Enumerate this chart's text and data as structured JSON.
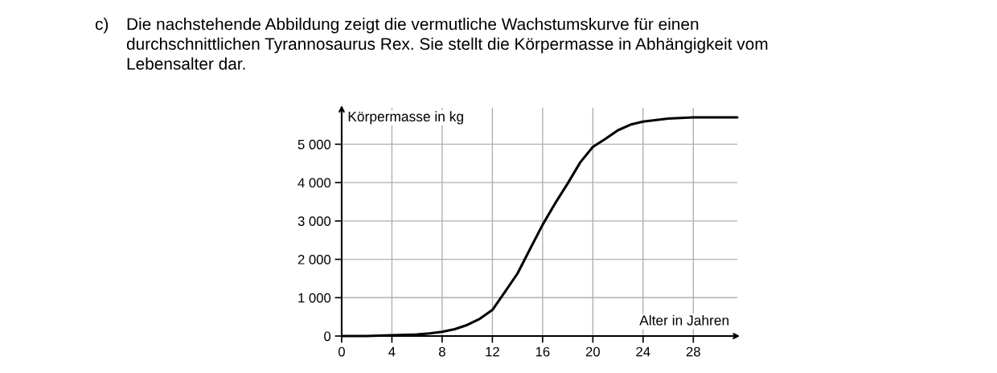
{
  "chart_data": {
    "type": "line",
    "title": "Die nachstehende Abbildung zeigt die vermutliche Wachstumskurve für einen\ndurchschnittlichen Tyrannosaurus Rex. Sie stellt die Körpermasse in Abhängigkeit vom\nLebensalter dar.",
    "annotations": [
      "c)"
    ],
    "xlabel": "Alter in Jahren",
    "ylabel": "Körpermasse in kg",
    "series": [
      {
        "color": "#000000",
        "x": [
          0,
          2,
          4,
          6,
          7,
          8,
          9,
          10,
          11,
          12,
          13,
          14,
          15,
          16,
          17,
          18,
          19,
          20,
          21,
          22,
          23,
          24,
          26,
          28,
          31.5
        ],
        "values": [
          0,
          0,
          20,
          40,
          70,
          110,
          180,
          290,
          450,
          680,
          1150,
          1630,
          2270,
          2900,
          3460,
          3980,
          4530,
          4930,
          5140,
          5365,
          5510,
          5590,
          5670,
          5700,
          5700
        ]
      }
    ],
    "xlim": [
      0,
      31.5
    ],
    "ylim": [
      0,
      5950
    ],
    "xticks": [
      0,
      4,
      8,
      12,
      16,
      20,
      24,
      28
    ],
    "yticks": [
      0,
      {
        "value": 1000,
        "label": "1 000"
      },
      {
        "value": 2000,
        "label": "2 000"
      },
      {
        "value": 3000,
        "label": "3 000"
      },
      {
        "value": 4000,
        "label": "4 000"
      },
      {
        "value": 5000,
        "label": "5 000"
      }
    ],
    "grid": true,
    "line_style": "solid",
    "marker": "none"
  }
}
